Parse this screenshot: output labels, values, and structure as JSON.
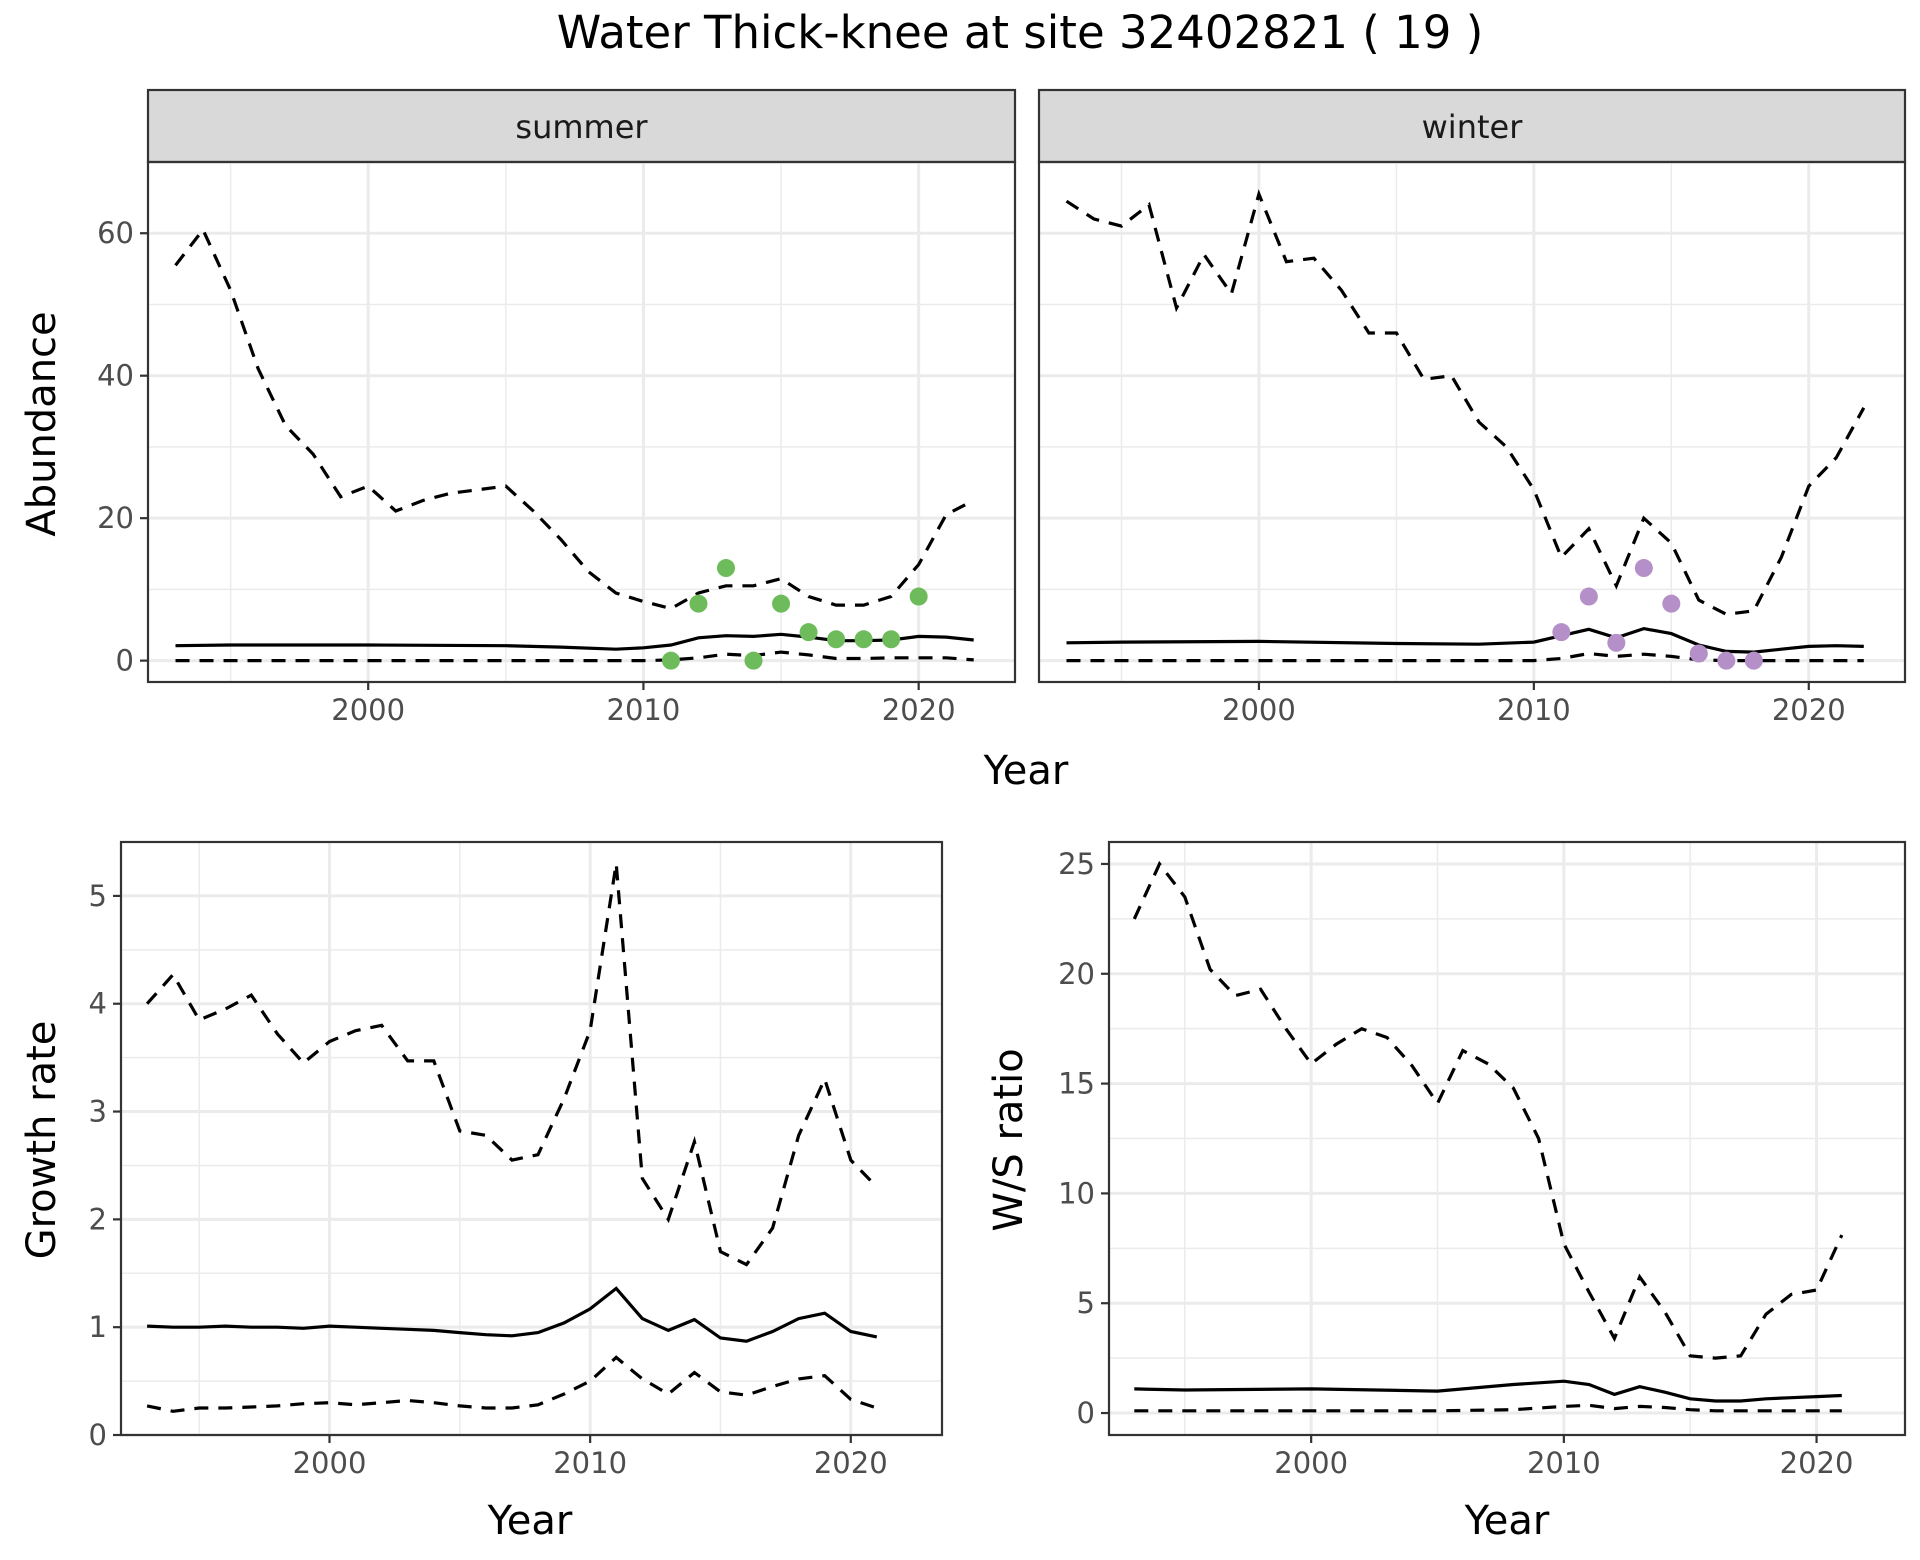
{
  "title": "Water Thick-knee at site 32402821 ( 19 )",
  "colors": {
    "summer_points": "#6dbb5a",
    "winter_points": "#b48fc8",
    "lines": "#000000"
  },
  "chart_data": [
    {
      "id": "abundance-summer",
      "type": "line",
      "facet_label": "summer",
      "ylabel": "Abundance",
      "shared_xlabel": "Year",
      "xlim": [
        1992,
        2023.5
      ],
      "ylim": [
        -3,
        70
      ],
      "x_ticks": [
        2000,
        2010,
        2020
      ],
      "y_ticks": [
        0,
        20,
        40,
        60
      ],
      "grid": true,
      "series": [
        {
          "style": "solid",
          "x": [
            1993,
            1995,
            2000,
            2005,
            2007,
            2009,
            2010,
            2011,
            2012,
            2013,
            2014,
            2015,
            2016,
            2017,
            2018,
            2019,
            2020,
            2021,
            2022
          ],
          "y": [
            2.1,
            2.2,
            2.2,
            2.1,
            1.9,
            1.6,
            1.8,
            2.2,
            3.2,
            3.5,
            3.4,
            3.7,
            3.3,
            2.8,
            2.8,
            2.9,
            3.4,
            3.3,
            2.9
          ]
        },
        {
          "style": "dashed",
          "x": [
            1993,
            1994,
            1995,
            1996,
            1997,
            1998,
            1999,
            2000,
            2001,
            2002,
            2003,
            2004,
            2005,
            2006,
            2007,
            2008,
            2009,
            2010,
            2011,
            2012,
            2013,
            2014,
            2015,
            2016,
            2017,
            2018,
            2019,
            2020,
            2021,
            2022
          ],
          "y": [
            55.5,
            60.5,
            52,
            41,
            33,
            29,
            23,
            24.5,
            21,
            22.5,
            23.5,
            24,
            24.5,
            21,
            17,
            12.5,
            9.5,
            8.3,
            7.3,
            9.5,
            10.5,
            10.5,
            11.5,
            9,
            7.8,
            7.8,
            9,
            13.5,
            20.5,
            22.5
          ]
        },
        {
          "style": "dashed",
          "x": [
            1993,
            2000,
            2005,
            2010,
            2011,
            2012,
            2013,
            2014,
            2015,
            2016,
            2017,
            2018,
            2019,
            2020,
            2021,
            2022
          ],
          "y": [
            0,
            0,
            0,
            0,
            0.1,
            0.4,
            0.9,
            0.7,
            1.2,
            0.8,
            0.3,
            0.3,
            0.4,
            0.4,
            0.4,
            0.1
          ]
        }
      ],
      "points": {
        "x": [
          2011,
          2012,
          2013,
          2014,
          2015,
          2016,
          2017,
          2018,
          2019,
          2020
        ],
        "y": [
          0,
          8,
          13,
          0,
          8,
          4,
          3,
          3,
          3,
          9
        ]
      }
    },
    {
      "id": "abundance-winter",
      "type": "line",
      "facet_label": "winter",
      "ylabel": "",
      "shared_xlabel": "Year",
      "xlim": [
        1992,
        2023.5
      ],
      "ylim": [
        -3,
        70
      ],
      "x_ticks": [
        2000,
        2010,
        2020
      ],
      "y_ticks": [
        0,
        20,
        40,
        60
      ],
      "grid": true,
      "series": [
        {
          "style": "solid",
          "x": [
            1993,
            1995,
            2000,
            2005,
            2008,
            2010,
            2011,
            2012,
            2013,
            2014,
            2015,
            2016,
            2017,
            2018,
            2019,
            2020,
            2021,
            2022
          ],
          "y": [
            2.5,
            2.6,
            2.7,
            2.4,
            2.3,
            2.6,
            3.5,
            4.4,
            3.2,
            4.5,
            3.8,
            2.2,
            1.3,
            1.2,
            1.6,
            2,
            2.1,
            2
          ]
        },
        {
          "style": "dashed",
          "x": [
            1993,
            1994,
            1995,
            1996,
            1997,
            1998,
            1999,
            2000,
            2001,
            2002,
            2003,
            2004,
            2005,
            2006,
            2007,
            2008,
            2009,
            2010,
            2011,
            2012,
            2013,
            2014,
            2015,
            2016,
            2017,
            2018,
            2019,
            2020,
            2021,
            2022
          ],
          "y": [
            64.5,
            62,
            61,
            64,
            49.5,
            57,
            51.5,
            65.5,
            56,
            56.5,
            52,
            46,
            46,
            39.5,
            40,
            33.5,
            30,
            24,
            14.5,
            18.5,
            10.5,
            20,
            16.5,
            8.5,
            6.5,
            7,
            14.5,
            24.5,
            28.5,
            35.5
          ]
        },
        {
          "style": "dashed",
          "x": [
            1993,
            2000,
            2005,
            2010,
            2011,
            2012,
            2013,
            2014,
            2015,
            2016,
            2017,
            2018,
            2019,
            2020,
            2021,
            2022
          ],
          "y": [
            0,
            0,
            0,
            0,
            0.3,
            1,
            0.6,
            0.9,
            0.6,
            0.1,
            0,
            0,
            0,
            0,
            0,
            0
          ]
        }
      ],
      "points": {
        "x": [
          2011,
          2012,
          2013,
          2014,
          2015,
          2016,
          2017,
          2018
        ],
        "y": [
          4,
          9,
          2.5,
          13,
          8,
          1,
          0,
          0
        ]
      }
    },
    {
      "id": "growth-rate",
      "type": "line",
      "ylabel": "Growth rate",
      "xlabel": "Year",
      "xlim": [
        1992,
        2023.5
      ],
      "ylim": [
        0,
        5.5
      ],
      "x_ticks": [
        2000,
        2010,
        2020
      ],
      "y_ticks": [
        0,
        1,
        2,
        3,
        4,
        5
      ],
      "grid": true,
      "series": [
        {
          "style": "solid",
          "x": [
            1993,
            1994,
            1995,
            1996,
            1997,
            1998,
            1999,
            2000,
            2001,
            2002,
            2003,
            2004,
            2005,
            2006,
            2007,
            2008,
            2009,
            2010,
            2011,
            2012,
            2013,
            2014,
            2015,
            2016,
            2017,
            2018,
            2019,
            2020,
            2021
          ],
          "y": [
            1.01,
            1,
            1,
            1.01,
            1,
            1,
            0.99,
            1.01,
            1,
            0.99,
            0.98,
            0.97,
            0.95,
            0.93,
            0.92,
            0.95,
            1.04,
            1.17,
            1.36,
            1.08,
            0.97,
            1.07,
            0.9,
            0.87,
            0.96,
            1.08,
            1.13,
            0.96,
            0.91
          ]
        },
        {
          "style": "dashed",
          "x": [
            1993,
            1994,
            1995,
            1996,
            1997,
            1998,
            1999,
            2000,
            2001,
            2002,
            2003,
            2004,
            2005,
            2006,
            2007,
            2008,
            2009,
            2010,
            2011,
            2012,
            2013,
            2014,
            2015,
            2016,
            2017,
            2018,
            2019,
            2020,
            2021
          ],
          "y": [
            4,
            4.27,
            3.85,
            3.95,
            4.08,
            3.72,
            3.45,
            3.65,
            3.75,
            3.8,
            3.47,
            3.47,
            2.82,
            2.78,
            2.55,
            2.6,
            3.12,
            3.75,
            5.3,
            2.38,
            2,
            2.72,
            1.7,
            1.58,
            1.92,
            2.78,
            3.3,
            2.55,
            2.3
          ]
        },
        {
          "style": "dashed",
          "x": [
            1993,
            1994,
            1995,
            1996,
            1997,
            1998,
            1999,
            2000,
            2001,
            2002,
            2003,
            2004,
            2005,
            2006,
            2007,
            2008,
            2009,
            2010,
            2011,
            2012,
            2013,
            2014,
            2015,
            2016,
            2017,
            2018,
            2019,
            2020,
            2021
          ],
          "y": [
            0.27,
            0.22,
            0.25,
            0.25,
            0.26,
            0.27,
            0.29,
            0.3,
            0.28,
            0.3,
            0.32,
            0.3,
            0.27,
            0.25,
            0.25,
            0.28,
            0.38,
            0.5,
            0.72,
            0.52,
            0.38,
            0.58,
            0.4,
            0.37,
            0.45,
            0.52,
            0.55,
            0.33,
            0.25
          ]
        }
      ]
    },
    {
      "id": "ws-ratio",
      "type": "line",
      "ylabel": "W/S ratio",
      "xlabel": "Year",
      "xlim": [
        1992,
        2023.5
      ],
      "ylim": [
        -1,
        26
      ],
      "x_ticks": [
        2000,
        2010,
        2020
      ],
      "y_ticks": [
        0,
        5,
        10,
        15,
        20,
        25
      ],
      "grid": true,
      "series": [
        {
          "style": "solid",
          "x": [
            1993,
            1995,
            2000,
            2005,
            2008,
            2010,
            2011,
            2012,
            2013,
            2014,
            2015,
            2016,
            2017,
            2018,
            2019,
            2020,
            2021
          ],
          "y": [
            1.1,
            1.05,
            1.1,
            1,
            1.3,
            1.45,
            1.3,
            0.85,
            1.2,
            0.95,
            0.65,
            0.55,
            0.55,
            0.65,
            0.7,
            0.75,
            0.8
          ]
        },
        {
          "style": "dashed",
          "x": [
            1993,
            1994,
            1995,
            1996,
            1997,
            1998,
            1999,
            2000,
            2001,
            2002,
            2003,
            2004,
            2005,
            2006,
            2007,
            2008,
            2009,
            2010,
            2011,
            2012,
            2013,
            2014,
            2015,
            2016,
            2017,
            2018,
            2019,
            2020,
            2021
          ],
          "y": [
            22.5,
            25,
            23.5,
            20.2,
            19,
            19.3,
            17.5,
            15.9,
            16.8,
            17.5,
            17.1,
            15.8,
            14.1,
            16.5,
            15.9,
            14.8,
            12.5,
            7.7,
            5.5,
            3.4,
            6.2,
            4.6,
            2.6,
            2.5,
            2.6,
            4.5,
            5.4,
            5.6,
            8.1
          ]
        },
        {
          "style": "dashed",
          "x": [
            1993,
            2000,
            2005,
            2008,
            2010,
            2011,
            2012,
            2013,
            2014,
            2015,
            2016,
            2017,
            2018,
            2019,
            2020,
            2021
          ],
          "y": [
            0.1,
            0.1,
            0.1,
            0.15,
            0.3,
            0.35,
            0.2,
            0.3,
            0.25,
            0.15,
            0.1,
            0.1,
            0.1,
            0.1,
            0.1,
            0.1
          ]
        }
      ]
    }
  ]
}
